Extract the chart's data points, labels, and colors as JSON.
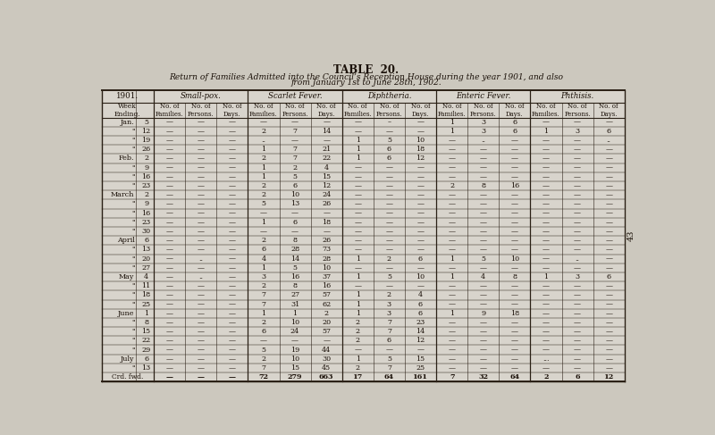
{
  "title": "TABLE  20.",
  "subtitle_line1": "Return of Families Admitted into the Council’s Reception House during the year 1901, and also",
  "subtitle_line2": "from January 1st to June 28th, 1902.",
  "year_label": "1901.",
  "col_groups": [
    "Small-pox.",
    "Scarlet Fever.",
    "Diphtheria.",
    "Enteric Fever.",
    "Phthisis."
  ],
  "sub_cols": [
    "No. of\nFamilies.",
    "No. of\nPersons.",
    "No. of\nDays."
  ],
  "week_col_header": "Week\nEnding.",
  "rows": [
    [
      "Jan.",
      "5",
      "—",
      "—",
      "—",
      "—",
      "—",
      "—",
      "—",
      "–",
      "—",
      "1",
      "3",
      "6",
      "—",
      "—",
      "—"
    ],
    [
      "\"",
      "12",
      "—",
      "—",
      "—",
      "2",
      "7",
      "14",
      "—",
      "—",
      "—",
      "1",
      "3",
      "6",
      "1",
      "3",
      "6"
    ],
    [
      "\"",
      "19",
      "—",
      "—",
      "—",
      "..",
      "—",
      "—",
      "1",
      "5",
      "10",
      "—",
      "..",
      "—",
      "—",
      "—",
      ".."
    ],
    [
      "\"",
      "26",
      "—",
      "—",
      "—",
      "1",
      "7",
      "21",
      "1",
      "6",
      "18",
      "—",
      "—",
      "—",
      "—",
      "—",
      "—"
    ],
    [
      "Feb.",
      "2",
      "—",
      "—",
      "—",
      "2",
      "7",
      "22",
      "1",
      "6",
      "12",
      "—",
      "—",
      "—",
      "—",
      "—",
      "—"
    ],
    [
      "\"",
      "9",
      "—",
      "—",
      "—",
      "1",
      "2",
      "4",
      "—",
      "—",
      "—",
      "—",
      "—",
      "—",
      "—",
      "—",
      "—"
    ],
    [
      "\"",
      "16",
      "—",
      "—",
      "—",
      "1",
      "5",
      "15",
      "—",
      "—",
      "—",
      "—",
      "—",
      "—",
      "—",
      "—",
      "—"
    ],
    [
      "\"",
      "23",
      "—",
      "—",
      "—",
      "2",
      "6",
      "12",
      "—",
      "—",
      "—",
      "2",
      "8",
      "16",
      "—",
      "—",
      "—"
    ],
    [
      "March",
      "2",
      "—",
      "—",
      "—",
      "2",
      "10",
      "24",
      "—",
      "—",
      "—",
      "—",
      "—",
      "—",
      "—",
      "—",
      "—"
    ],
    [
      "\"",
      "9",
      "—",
      "—",
      "—",
      "5",
      "13",
      "26",
      "—",
      "—",
      "—",
      "—",
      "—",
      "—",
      "—",
      "—",
      "—"
    ],
    [
      "\"",
      "16",
      "—",
      "—",
      "—",
      "—",
      "—",
      "—",
      "—",
      "—",
      "—",
      "—",
      "—",
      "—",
      "—",
      "—",
      "—"
    ],
    [
      "\"",
      "23",
      "—",
      "—",
      "—",
      "1",
      "6",
      "18",
      "—",
      "—",
      "—",
      "—",
      "—",
      "—",
      "—",
      "—",
      "—"
    ],
    [
      "\"",
      "30",
      "—",
      "—",
      "—",
      "—",
      "—",
      "—",
      "—",
      "—",
      "—",
      "—",
      "—",
      "—",
      "—",
      "—",
      "—"
    ],
    [
      "April",
      "6",
      "—",
      "—",
      "—",
      "2",
      "8",
      "26",
      "—",
      "—",
      "—",
      "—",
      "—",
      "—",
      "—",
      "—",
      "—"
    ],
    [
      "\"",
      "13",
      "—",
      "—",
      "—",
      "6",
      "28",
      "73",
      "—",
      "—",
      "—",
      "—",
      "—",
      "—",
      "—",
      "—",
      "—"
    ],
    [
      "\"",
      "20",
      "—",
      "..",
      "—",
      "4",
      "14",
      "28",
      "1",
      "2",
      "6",
      "1",
      "5",
      "10",
      "—",
      "..",
      "—"
    ],
    [
      "\"",
      "27",
      "—",
      "—",
      "—",
      "1",
      "5",
      "10",
      "—",
      "—",
      "—",
      "—",
      "—",
      "—",
      "—",
      "—",
      "—"
    ],
    [
      "May",
      "4",
      "—",
      "..",
      "—",
      "3",
      "16",
      "37",
      "1",
      "5",
      "10",
      "1",
      "4",
      "8",
      "1",
      "3",
      "6"
    ],
    [
      "\"",
      "11",
      "—",
      "—",
      "—",
      "2",
      "8",
      "16",
      "—",
      "—",
      "—",
      "—",
      "—",
      "—",
      "—",
      "—",
      "—"
    ],
    [
      "\"",
      "18",
      "—",
      "—",
      "—",
      "7",
      "27",
      "57",
      "1",
      "2",
      "4",
      "—",
      "—",
      "—",
      "—",
      "—",
      "—"
    ],
    [
      "\"",
      "25",
      "—",
      "—",
      "—",
      "7",
      "31",
      "62",
      "1",
      "3",
      "6",
      "—",
      "—",
      "—",
      "—",
      "—",
      "—"
    ],
    [
      "June",
      "1",
      "—",
      "—",
      "—",
      "1",
      "1",
      "2",
      "1",
      "3",
      "6",
      "1",
      "9",
      "18",
      "—",
      "—",
      "—"
    ],
    [
      "\"",
      "8",
      "—",
      "—",
      "—",
      "2",
      "10",
      "20",
      "2",
      "7",
      "23",
      "—",
      "—",
      "—",
      "—",
      "—",
      "—"
    ],
    [
      "\"",
      "15",
      "—",
      "—",
      "—",
      "6",
      "24",
      "57",
      "2",
      "7",
      "14",
      "—",
      "—",
      "—",
      "—",
      "—",
      "—"
    ],
    [
      "\"",
      "22",
      "—",
      "—",
      "—",
      "—",
      "—",
      "—",
      "2",
      "6",
      "12",
      "—",
      "—",
      "—",
      "—",
      "—",
      "—"
    ],
    [
      "\"",
      "29",
      "—",
      "—",
      "—",
      "5",
      "19",
      "44",
      "—",
      "—",
      "—",
      "—",
      "—",
      "—",
      "—",
      "—",
      "—"
    ],
    [
      "July",
      "6",
      "—",
      "—",
      "—",
      "2",
      "10",
      "30",
      "1",
      "5",
      "15",
      "—",
      "—",
      "—",
      "...",
      "—",
      "—"
    ],
    [
      "\"",
      "13",
      "—",
      "—",
      "—",
      "7",
      "15",
      "45",
      "2",
      "7",
      "25",
      "—",
      "—",
      "—",
      "—",
      "—",
      "—"
    ],
    [
      "Crd. fwd.",
      "",
      "—",
      "—",
      "—",
      "72",
      "279",
      "663",
      "17",
      "64",
      "161",
      "7",
      "32",
      "64",
      "2",
      "6",
      "12"
    ]
  ],
  "bg_color": "#ccc8be",
  "table_bg": "#d4cfc6",
  "text_color": "#1a1008",
  "line_color": "#2a2015",
  "font_size": 5.8,
  "header_font_size": 6.2,
  "title_font_size": 8.5,
  "subtitle_font_size": 6.6
}
